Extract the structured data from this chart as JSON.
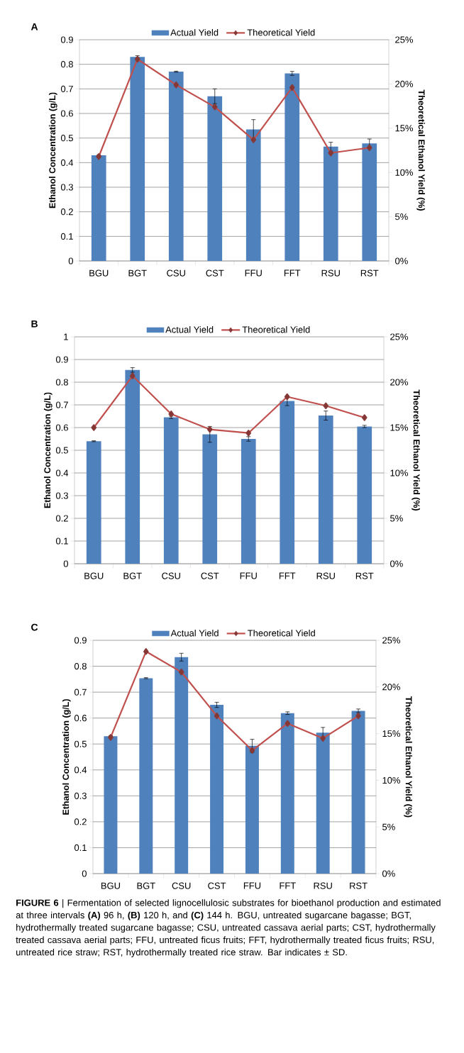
{
  "chart_data": [
    {
      "type": "bar",
      "title": "A",
      "categories": [
        "BGU",
        "BGT",
        "CSU",
        "CST",
        "FFU",
        "FFT",
        "RSU",
        "RST"
      ],
      "ylabel": "Ethanol Concentration (g/L)",
      "y2label": "Theoretical Ethanol Yield (%)",
      "ylim": [
        0,
        0.9
      ],
      "yticks": [
        0,
        0.1,
        0.2,
        0.3,
        0.4,
        0.5,
        0.6,
        0.7,
        0.8,
        0.9
      ],
      "y2lim": [
        0,
        25
      ],
      "y2ticks": [
        {
          "value": 0,
          "label": "0%"
        },
        {
          "value": 5,
          "label": "5%"
        },
        {
          "value": 10,
          "label": "10%"
        },
        {
          "value": 15,
          "label": "15%"
        },
        {
          "value": 20,
          "label": "20%"
        },
        {
          "value": 25,
          "label": "25%"
        }
      ],
      "grid": "y",
      "legend": "top",
      "series": [
        {
          "name": "Actual Yield",
          "color": "#4f81bd",
          "values": [
            0.43,
            0.83,
            0.77,
            0.67,
            0.535,
            0.763,
            0.465,
            0.478
          ],
          "errors": [
            0.002,
            0.005,
            0.002,
            0.03,
            0.04,
            0.008,
            0.018,
            0.018
          ]
        },
        {
          "name": "Theoretical Yield",
          "type": "line",
          "axis": "y2",
          "color": "#c0504d",
          "marker": "diamond",
          "line_style": "solid",
          "values": [
            11.8,
            22.8,
            19.9,
            17.4,
            13.7,
            19.6,
            12.2,
            12.8
          ]
        }
      ]
    },
    {
      "type": "bar",
      "title": "B",
      "categories": [
        "BGU",
        "BGT",
        "CSU",
        "CST",
        "FFU",
        "FFT",
        "RSU",
        "RST"
      ],
      "ylabel": "Ethanol Concentration (g/L)",
      "y2label": "Theoretical Ethanol Yield (%)",
      "ylim": [
        0,
        1
      ],
      "yticks": [
        0,
        0.1,
        0.2,
        0.3,
        0.4,
        0.5,
        0.6,
        0.7,
        0.8,
        0.9,
        1
      ],
      "y2lim": [
        0,
        25
      ],
      "y2ticks": [
        {
          "value": 0,
          "label": "0%"
        },
        {
          "value": 5,
          "label": "5%"
        },
        {
          "value": 10,
          "label": "10%"
        },
        {
          "value": 15,
          "label": "15%"
        },
        {
          "value": 20,
          "label": "20%"
        },
        {
          "value": 25,
          "label": "25%"
        }
      ],
      "grid": "y",
      "legend": "top",
      "series": [
        {
          "name": "Actual Yield",
          "color": "#4f81bd",
          "values": [
            0.54,
            0.854,
            0.645,
            0.57,
            0.55,
            0.717,
            0.653,
            0.605
          ],
          "errors": [
            0.002,
            0.01,
            0.005,
            0.035,
            0.01,
            0.02,
            0.02,
            0.005
          ]
        },
        {
          "name": "Theoretical Yield",
          "type": "line",
          "axis": "y2",
          "color": "#c0504d",
          "marker": "diamond",
          "line_style": "solid",
          "values": [
            15.0,
            20.7,
            16.5,
            14.8,
            14.4,
            18.4,
            17.4,
            16.1
          ]
        }
      ]
    },
    {
      "type": "bar",
      "title": "C",
      "categories": [
        "BGU",
        "BGT",
        "CSU",
        "CST",
        "FFU",
        "FFT",
        "RSU",
        "RST"
      ],
      "ylabel": "Ethanol Concentration (g/L)",
      "y2label": "Theoretical Ethanol Yield (%)",
      "ylim": [
        0,
        0.9
      ],
      "yticks": [
        0,
        0.1,
        0.2,
        0.3,
        0.4,
        0.5,
        0.6,
        0.7,
        0.8,
        0.9
      ],
      "y2lim": [
        0,
        25
      ],
      "y2ticks": [
        {
          "value": 0,
          "label": "0%"
        },
        {
          "value": 5,
          "label": "5%"
        },
        {
          "value": 10,
          "label": "10%"
        },
        {
          "value": 15,
          "label": "15%"
        },
        {
          "value": 20,
          "label": "20%"
        },
        {
          "value": 25,
          "label": "25%"
        }
      ],
      "grid": "y",
      "legend": "top",
      "annotations": [
        "**FIGURE 6** | Fermentation of selected lignocellulosic substrates for bioethanol production and estimated at three intervals **(A)** 96 h, **(B)** 120 h, and **(C)** 144 h. BGU, untreated sugarcane bagasse; BGT, hydrothermally treated sugarcane bagasse; CSU, untreated cassava aerial parts; CST, hydrothermally treated cassava aerial parts; FFU, untreated ficus fruits; FFT, hydrothermally treated ficus fruits; RSU, untreated rice straw; RST, hydrothermally treated rice straw. Bar indicates ± SD."
      ],
      "series": [
        {
          "name": "Actual Yield",
          "color": "#4f81bd",
          "values": [
            0.53,
            0.754,
            0.835,
            0.651,
            0.493,
            0.619,
            0.544,
            0.628
          ],
          "errors": [
            0.002,
            0.002,
            0.015,
            0.01,
            0.025,
            0.005,
            0.02,
            0.007
          ]
        },
        {
          "name": "Theoretical Yield",
          "type": "line",
          "axis": "y2",
          "color": "#c0504d",
          "marker": "diamond",
          "line_style": "solid",
          "values": [
            14.6,
            23.8,
            21.6,
            16.9,
            13.2,
            16.1,
            14.5,
            16.9
          ]
        }
      ]
    }
  ]
}
